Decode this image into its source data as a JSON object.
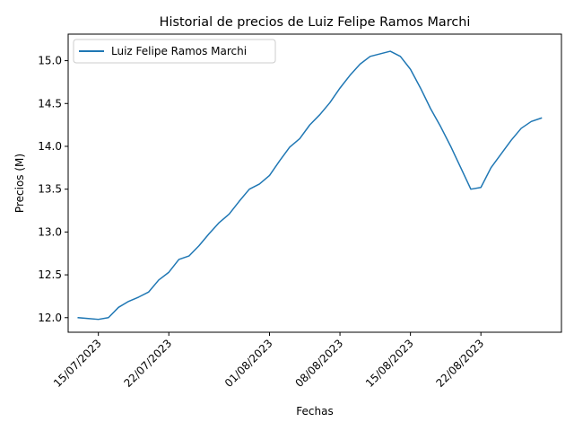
{
  "chart_data": {
    "type": "line",
    "title": "Historial de precios de Luiz Felipe Ramos Marchi",
    "xlabel": "Fechas",
    "ylabel": "Precios (M)",
    "ylim": [
      11.83,
      15.31
    ],
    "xlim": [
      "2023-07-12",
      "2023-08-30"
    ],
    "x_ticks": [
      {
        "date": "2023-07-15",
        "label": "15/07/2023"
      },
      {
        "date": "2023-07-22",
        "label": "22/07/2023"
      },
      {
        "date": "2023-08-01",
        "label": "01/08/2023"
      },
      {
        "date": "2023-08-08",
        "label": "08/08/2023"
      },
      {
        "date": "2023-08-15",
        "label": "15/08/2023"
      },
      {
        "date": "2023-08-22",
        "label": "22/08/2023"
      }
    ],
    "y_ticks": [
      12.0,
      12.5,
      13.0,
      13.5,
      14.0,
      14.5,
      15.0
    ],
    "y_tick_labels": [
      "12.0",
      "12.5",
      "13.0",
      "13.5",
      "14.0",
      "14.5",
      "15.0"
    ],
    "grid": false,
    "legend": "upper left",
    "series": [
      {
        "name": "Luiz Felipe Ramos Marchi",
        "color": "#1f77b4",
        "x": [
          "2023-07-13",
          "2023-07-14",
          "2023-07-15",
          "2023-07-16",
          "2023-07-17",
          "2023-07-18",
          "2023-07-19",
          "2023-07-20",
          "2023-07-21",
          "2023-07-22",
          "2023-07-23",
          "2023-07-24",
          "2023-07-25",
          "2023-07-26",
          "2023-07-27",
          "2023-07-28",
          "2023-07-29",
          "2023-07-30",
          "2023-07-31",
          "2023-08-01",
          "2023-08-02",
          "2023-08-03",
          "2023-08-04",
          "2023-08-05",
          "2023-08-06",
          "2023-08-07",
          "2023-08-08",
          "2023-08-09",
          "2023-08-10",
          "2023-08-11",
          "2023-08-12",
          "2023-08-13",
          "2023-08-14",
          "2023-08-15",
          "2023-08-16",
          "2023-08-17",
          "2023-08-18",
          "2023-08-19",
          "2023-08-20",
          "2023-08-21",
          "2023-08-22",
          "2023-08-23",
          "2023-08-24",
          "2023-08-25",
          "2023-08-26",
          "2023-08-27",
          "2023-08-28"
        ],
        "values": [
          12.0,
          11.99,
          11.98,
          12.0,
          12.12,
          12.19,
          12.24,
          12.3,
          12.44,
          12.53,
          12.68,
          12.72,
          12.84,
          12.98,
          13.11,
          13.21,
          13.36,
          13.5,
          13.56,
          13.66,
          13.83,
          13.99,
          14.09,
          14.25,
          14.37,
          14.51,
          14.68,
          14.83,
          14.96,
          15.05,
          15.08,
          15.11,
          15.05,
          14.9,
          14.68,
          14.44,
          14.23,
          14.0,
          13.75,
          13.5,
          13.52,
          13.75,
          13.91,
          14.07,
          14.21,
          14.29,
          14.33
        ]
      }
    ]
  }
}
